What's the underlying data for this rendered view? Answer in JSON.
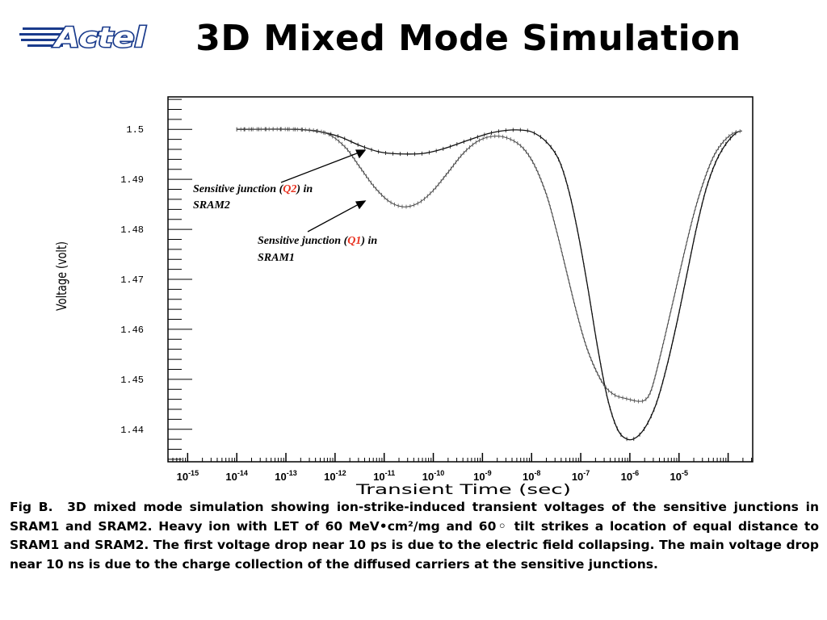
{
  "header": {
    "title": "3D Mixed Mode Simulation",
    "logo_text": "Actel"
  },
  "colors": {
    "accent": "#e8301e",
    "logo": "#1a3b8c"
  },
  "chart_data": {
    "type": "line",
    "xlabel": "Transient Time (sec)",
    "ylabel": "Voltage (volt)",
    "xscale": "log",
    "xlim_exp": [
      -15.4,
      -3.5
    ],
    "ylim": [
      1.4335,
      1.5065
    ],
    "yticks": [
      "1.5",
      "1.49",
      "1.48",
      "1.47",
      "1.46",
      "1.45",
      "1.44"
    ],
    "xticks": [
      {
        "base": "10",
        "exp": "-15"
      },
      {
        "base": "10",
        "exp": "-14"
      },
      {
        "base": "10",
        "exp": "-13"
      },
      {
        "base": "10",
        "exp": "-12"
      },
      {
        "base": "10",
        "exp": "-11"
      },
      {
        "base": "10",
        "exp": "-10"
      },
      {
        "base": "10",
        "exp": "-9"
      },
      {
        "base": "10",
        "exp": "-8"
      },
      {
        "base": "10",
        "exp": "-7"
      },
      {
        "base": "10",
        "exp": "-6"
      },
      {
        "base": "10",
        "exp": "-5"
      }
    ],
    "grid": false,
    "series": [
      {
        "name": "SRAM2 (Q2)",
        "style": "solid",
        "x_exp": [
          -14.0,
          -12.8,
          -12.3,
          -11.9,
          -11.5,
          -11.1,
          -10.7,
          -10.2,
          -9.8,
          -9.3,
          -8.9,
          -8.6,
          -8.3,
          -8.0,
          -7.7,
          -7.45,
          -7.25,
          -7.05,
          -6.85,
          -6.65,
          -6.45,
          -6.25,
          -6.05,
          -5.85,
          -5.65,
          -5.45,
          -5.25,
          -5.05,
          -4.85,
          -4.65,
          -4.45,
          -4.25,
          -4.05,
          -3.85,
          -3.72
        ],
        "y": [
          1.5,
          1.5,
          1.4995,
          1.4985,
          1.4968,
          1.4955,
          1.4951,
          1.4952,
          1.4961,
          1.4978,
          1.4991,
          1.4997,
          1.4999,
          1.4995,
          1.4975,
          1.494,
          1.488,
          1.479,
          1.468,
          1.456,
          1.446,
          1.44,
          1.438,
          1.4385,
          1.441,
          1.4455,
          1.4525,
          1.461,
          1.4705,
          1.48,
          1.488,
          1.4935,
          1.497,
          1.4992,
          1.4997
        ]
      },
      {
        "name": "SRAM1 (Q1)",
        "style": "dotted",
        "x_exp": [
          -14.0,
          -12.8,
          -12.2,
          -11.8,
          -11.5,
          -11.2,
          -10.9,
          -10.6,
          -10.3,
          -10.0,
          -9.7,
          -9.4,
          -9.1,
          -8.8,
          -8.5,
          -8.2,
          -7.95,
          -7.7,
          -7.5,
          -7.3,
          -7.1,
          -6.9,
          -6.7,
          -6.5,
          -6.3,
          -6.1,
          -5.9,
          -5.8,
          -5.7,
          -5.6,
          -5.5,
          -5.3,
          -5.1,
          -4.9,
          -4.7,
          -4.5,
          -4.3,
          -4.1,
          -3.9,
          -3.72
        ],
        "y": [
          1.5,
          1.5,
          1.4993,
          1.4965,
          1.4925,
          1.4885,
          1.4856,
          1.4845,
          1.4853,
          1.4878,
          1.4914,
          1.4951,
          1.4976,
          1.4986,
          1.4983,
          1.4965,
          1.493,
          1.487,
          1.48,
          1.472,
          1.464,
          1.457,
          1.452,
          1.4485,
          1.4468,
          1.4462,
          1.4457,
          1.4456,
          1.4458,
          1.447,
          1.45,
          1.458,
          1.4665,
          1.475,
          1.483,
          1.4895,
          1.4945,
          1.4975,
          1.4992,
          1.4997
        ]
      }
    ],
    "annotations": [
      {
        "text_pre": "Sensitive junction (",
        "q": "Q2",
        "text_post": ") in",
        "line2": "SRAM2"
      },
      {
        "text_pre": "Sensitive junction (",
        "q": "Q1",
        "text_post": ") in",
        "line2": "SRAM1"
      }
    ]
  },
  "caption": {
    "lead": "Fig B.",
    "text": "3D mixed mode simulation showing ion-strike-induced transient voltages of the sensitive junctions in SRAM1 and SRAM2.  Heavy ion with LET of 60 MeV•cm²/mg and 60◦ tilt strikes a location of equal distance to SRAM1 and SRAM2.  The first voltage drop near 10 ps is due to the electric field collapsing.  The main voltage drop near 10 ns is due to the charge collection of the diffused carriers at the sensitive junctions."
  }
}
